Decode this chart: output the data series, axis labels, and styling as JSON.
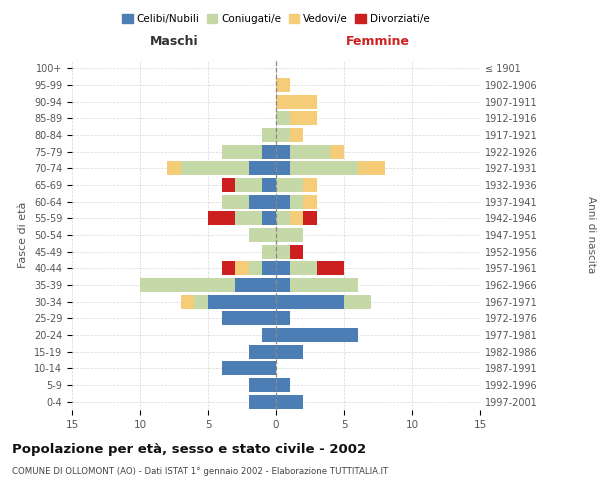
{
  "age_groups": [
    "0-4",
    "5-9",
    "10-14",
    "15-19",
    "20-24",
    "25-29",
    "30-34",
    "35-39",
    "40-44",
    "45-49",
    "50-54",
    "55-59",
    "60-64",
    "65-69",
    "70-74",
    "75-79",
    "80-84",
    "85-89",
    "90-94",
    "95-99",
    "100+"
  ],
  "birth_years": [
    "1997-2001",
    "1992-1996",
    "1987-1991",
    "1982-1986",
    "1977-1981",
    "1972-1976",
    "1967-1971",
    "1962-1966",
    "1957-1961",
    "1952-1956",
    "1947-1951",
    "1942-1946",
    "1937-1941",
    "1932-1936",
    "1927-1931",
    "1922-1926",
    "1917-1921",
    "1912-1916",
    "1907-1911",
    "1902-1906",
    "≤ 1901"
  ],
  "colors": {
    "celibi": "#4d7db5",
    "coniugati": "#c5d9a8",
    "vedovi": "#f5cc78",
    "divorziati": "#cc2020"
  },
  "males": {
    "celibi": [
      2,
      2,
      4,
      2,
      1,
      4,
      5,
      3,
      1,
      0,
      0,
      1,
      2,
      1,
      2,
      1,
      0,
      0,
      0,
      0,
      0
    ],
    "coniugati": [
      0,
      0,
      0,
      0,
      0,
      0,
      1,
      7,
      1,
      1,
      2,
      2,
      2,
      2,
      5,
      3,
      1,
      0,
      0,
      0,
      0
    ],
    "vedovi": [
      0,
      0,
      0,
      0,
      0,
      0,
      1,
      0,
      1,
      0,
      0,
      0,
      0,
      0,
      1,
      0,
      0,
      0,
      0,
      0,
      0
    ],
    "divorziati": [
      0,
      0,
      0,
      0,
      0,
      0,
      0,
      0,
      1,
      0,
      0,
      2,
      0,
      1,
      0,
      0,
      0,
      0,
      0,
      0,
      0
    ]
  },
  "females": {
    "celibi": [
      2,
      1,
      0,
      2,
      6,
      1,
      5,
      1,
      1,
      0,
      0,
      0,
      1,
      0,
      1,
      1,
      0,
      0,
      0,
      0,
      0
    ],
    "coniugati": [
      0,
      0,
      0,
      0,
      0,
      0,
      2,
      5,
      2,
      1,
      2,
      1,
      1,
      2,
      5,
      3,
      1,
      1,
      0,
      0,
      0
    ],
    "vedovi": [
      0,
      0,
      0,
      0,
      0,
      0,
      0,
      0,
      0,
      0,
      0,
      1,
      1,
      1,
      2,
      1,
      1,
      2,
      3,
      1,
      0
    ],
    "divorziati": [
      0,
      0,
      0,
      0,
      0,
      0,
      0,
      0,
      2,
      1,
      0,
      1,
      0,
      0,
      0,
      0,
      0,
      0,
      0,
      0,
      0
    ]
  },
  "xlim": 15,
  "title": "Popolazione per età, sesso e stato civile - 2002",
  "subtitle": "COMUNE DI OLLOMONT (AO) - Dati ISTAT 1° gennaio 2002 - Elaborazione TUTTITALIA.IT",
  "ylabel_left": "Fasce di età",
  "ylabel_right": "Anni di nascita",
  "xlabel_left": "Maschi",
  "xlabel_right": "Femmine"
}
